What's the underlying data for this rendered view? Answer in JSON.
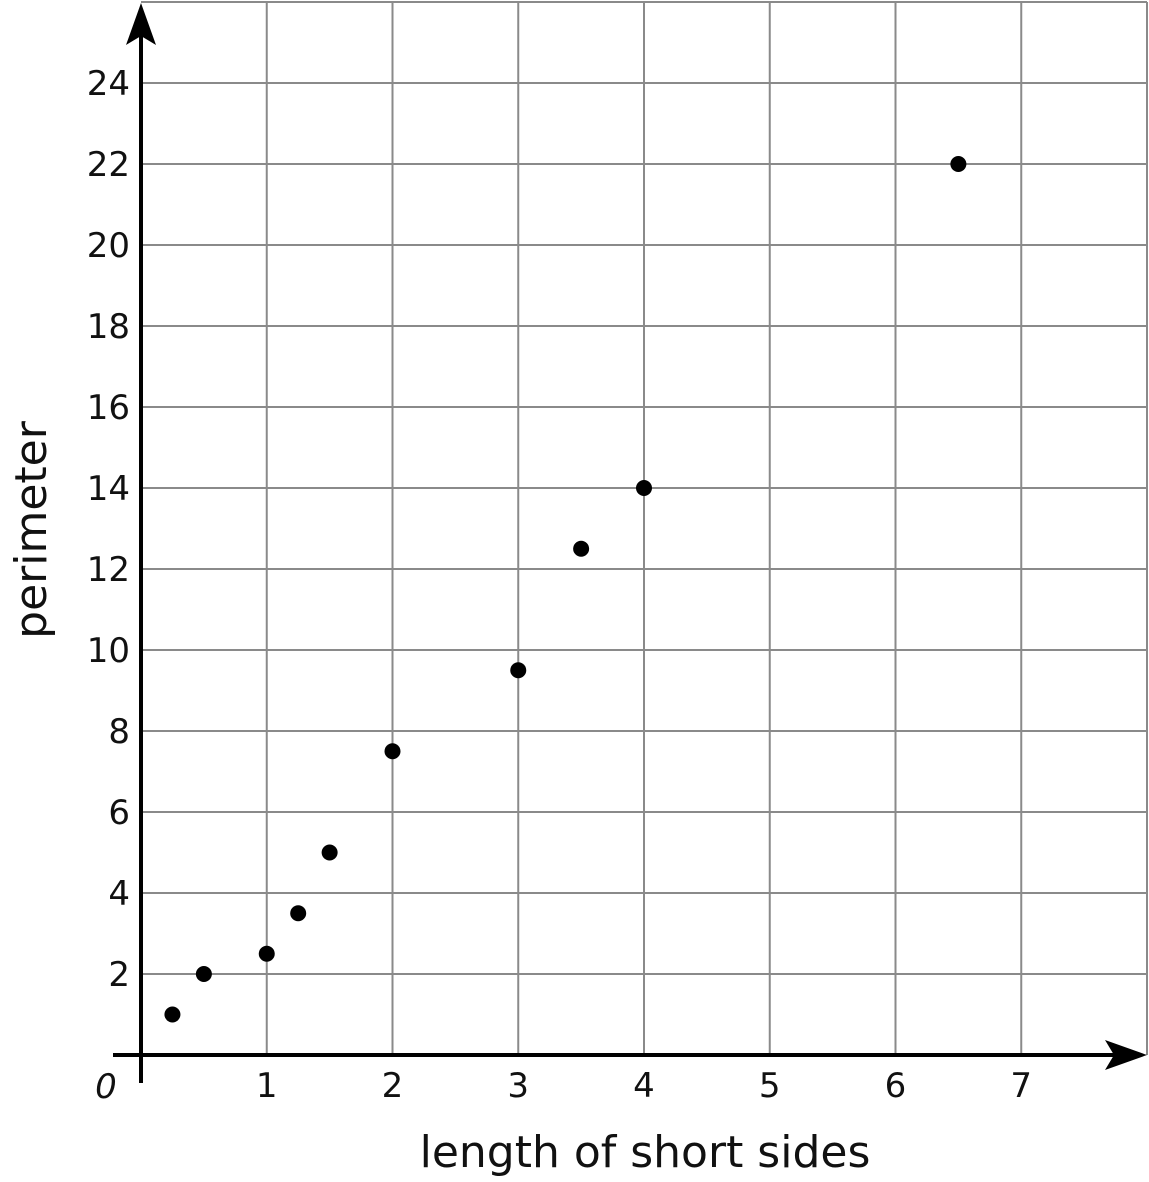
{
  "chart_data": {
    "type": "scatter",
    "title": "",
    "xlabel": "length of short sides",
    "ylabel": "perimeter",
    "xlim": [
      0,
      8
    ],
    "ylim": [
      0,
      26
    ],
    "grid": true,
    "x_ticks": [
      "1",
      "2",
      "3",
      "4",
      "5",
      "6",
      "7"
    ],
    "y_ticks": [
      "2",
      "4",
      "6",
      "8",
      "10",
      "12",
      "14",
      "16",
      "18",
      "20",
      "22",
      "24"
    ],
    "origin_label": "0",
    "points": [
      {
        "x": 0.25,
        "y": 1
      },
      {
        "x": 0.5,
        "y": 2
      },
      {
        "x": 1,
        "y": 2.5
      },
      {
        "x": 1.25,
        "y": 3.5
      },
      {
        "x": 1.5,
        "y": 5
      },
      {
        "x": 2,
        "y": 7.5
      },
      {
        "x": 3,
        "y": 9.5
      },
      {
        "x": 3.5,
        "y": 12.5
      },
      {
        "x": 4,
        "y": 14
      },
      {
        "x": 6.5,
        "y": 22
      }
    ],
    "colors": {
      "points": "#000000",
      "grid": "#8a8a8a",
      "axes": "#000000"
    }
  }
}
